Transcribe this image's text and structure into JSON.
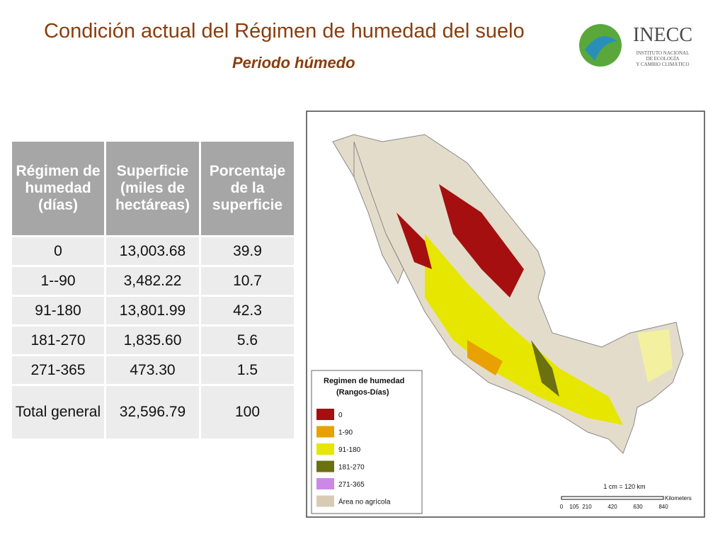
{
  "header": {
    "title": "Condición actual del Régimen de humedad del suelo",
    "subtitle": "Periodo húmedo"
  },
  "logo": {
    "name": "INECC",
    "lines": [
      "INSTITUTO NACIONAL",
      "DE ECOLOGÍA",
      "Y CAMBIO CLIMÁTICO"
    ]
  },
  "table": {
    "columns": [
      "Régimen de humedad (días)",
      "Superficie (miles de hectáreas)",
      "Porcentaje de la superficie"
    ],
    "rows": [
      [
        "0",
        "13,003.68",
        "39.9"
      ],
      [
        "1--90",
        "3,482.22",
        "10.7"
      ],
      [
        "91-180",
        "13,801.99",
        "42.3"
      ],
      [
        "181-270",
        "1,835.60",
        "5.6"
      ],
      [
        "271-365",
        "473.30",
        "1.5"
      ],
      [
        "Total general",
        "32,596.79",
        "100"
      ]
    ]
  },
  "map": {
    "legend": {
      "title": [
        "Regimen de humedad",
        "(Rangos-Días)"
      ],
      "items": [
        {
          "label": "0",
          "color": "#a50f0f"
        },
        {
          "label": "1-90",
          "color": "#e8a100"
        },
        {
          "label": "91-180",
          "color": "#e6e600"
        },
        {
          "label": "181-270",
          "color": "#6b7010"
        },
        {
          "label": "271-365",
          "color": "#cc88e6"
        },
        {
          "label": "Área no agrícola",
          "color": "#d8cbb5"
        }
      ]
    },
    "scale": {
      "label": "1 cm = 120 km",
      "unit": "Kilometers",
      "ticks": [
        "0",
        "105",
        "210",
        "420",
        "630",
        "840"
      ]
    }
  }
}
